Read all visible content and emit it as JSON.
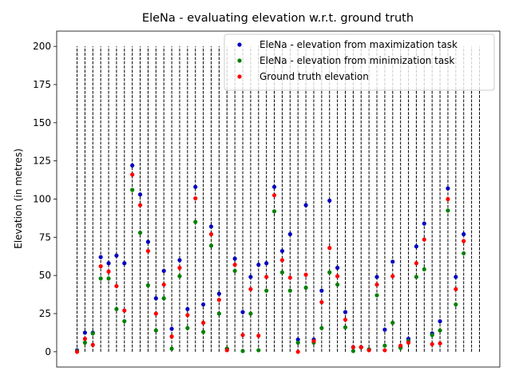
{
  "chart_data": {
    "type": "scatter",
    "title": "EleNa - evaluating elevation w.r.t. ground truth",
    "xlabel": "",
    "ylabel": "Elevation (in metres)",
    "ylim": [
      -10,
      210
    ],
    "yticks": [
      0,
      25,
      50,
      75,
      100,
      125,
      150,
      175,
      200
    ],
    "xticks": [],
    "grid": false,
    "legend_position": "top-right",
    "guide_lines": {
      "style": "dashed",
      "color": "#000000",
      "from": 0,
      "to": 200,
      "count": 52
    },
    "series": [
      {
        "name": "EleNa - elevation from maximization task",
        "color": "#0000bf",
        "values": [
          1,
          12.5,
          12.5,
          62,
          58,
          63,
          58,
          122,
          103,
          72,
          35,
          53,
          15,
          60,
          28,
          108,
          31,
          82,
          38,
          2,
          61,
          26,
          49,
          57,
          58,
          108,
          66,
          77,
          8,
          96,
          8,
          40,
          99,
          55,
          26,
          3,
          3,
          1.5,
          49,
          14.5,
          59,
          3,
          8.5,
          69,
          84,
          12,
          20,
          107,
          49,
          77
        ]
      },
      {
        "name": "EleNa - elevation from minimization task",
        "color": "#008000",
        "values": [
          0.5,
          6,
          12,
          48,
          48,
          28,
          20,
          106,
          78,
          43.5,
          14,
          35,
          2,
          49.5,
          15.5,
          85,
          13,
          69.5,
          25,
          2,
          53,
          0.5,
          25,
          1,
          40,
          92,
          52,
          40,
          6,
          42,
          6,
          15.5,
          52,
          44,
          16,
          0.5,
          3,
          1.5,
          37,
          4,
          19,
          2.5,
          7,
          49,
          54,
          11,
          14,
          92.5,
          31,
          64.5
        ]
      },
      {
        "name": "Ground truth elevation",
        "color": "#ff0000",
        "values": [
          0,
          8.5,
          4.5,
          56,
          52.5,
          43,
          27,
          116,
          96,
          66,
          25,
          44,
          10,
          55,
          24,
          100.5,
          19,
          77,
          34,
          1,
          57,
          11,
          41,
          10.5,
          49,
          102.5,
          60,
          48.5,
          0,
          50.5,
          7,
          32.5,
          68,
          49.5,
          21,
          3,
          3,
          1,
          44,
          1,
          49.5,
          4,
          6,
          58,
          73.5,
          5,
          5.5,
          100,
          41,
          72.5
        ]
      }
    ]
  }
}
